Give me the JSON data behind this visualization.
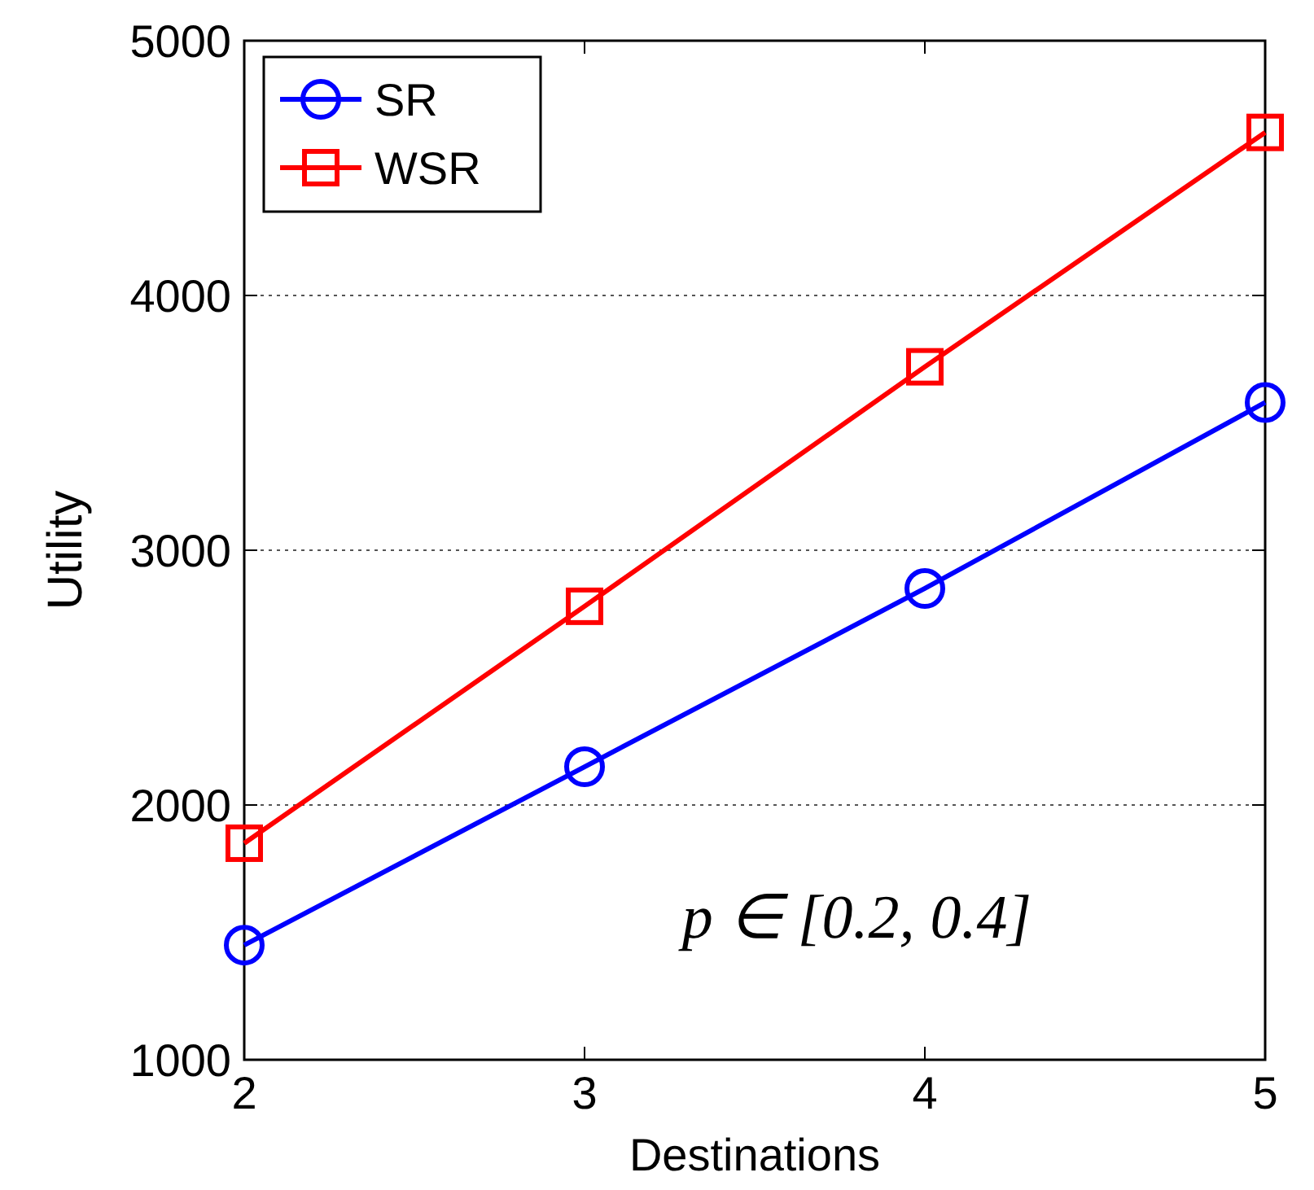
{
  "chart_data": {
    "type": "line",
    "xlabel": "Destinations",
    "ylabel": "Utility",
    "x": [
      2,
      3,
      4,
      5
    ],
    "series": [
      {
        "name": "SR",
        "color": "#0000ff",
        "marker": "circle",
        "values": [
          1450,
          2150,
          2850,
          3580
        ]
      },
      {
        "name": "WSR",
        "color": "#ff0000",
        "marker": "square",
        "values": [
          1850,
          2780,
          3720,
          4640
        ]
      }
    ],
    "xlim": [
      2,
      5
    ],
    "xticks": [
      2,
      3,
      4,
      5
    ],
    "ylim": [
      1000,
      5000
    ],
    "yticks": [
      1000,
      2000,
      3000,
      4000,
      5000
    ],
    "grid": "y",
    "legend": "top left",
    "line_style": "solid",
    "annotations": [
      "p ∈ [0.2, 0.4]"
    ]
  }
}
